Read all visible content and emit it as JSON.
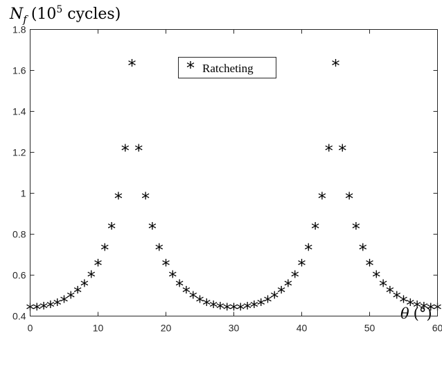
{
  "chart_data": {
    "type": "scatter",
    "title": "",
    "ylabel": {
      "symbol": "N",
      "subscript": "f",
      "open": "(10",
      "exponent": "5",
      "unit": " cycles)"
    },
    "xlabel": {
      "symbol": "θ",
      "unit": "(°)"
    },
    "xlim": [
      0,
      60
    ],
    "ylim": [
      0.4,
      1.8
    ],
    "x_ticks": [
      0,
      10,
      20,
      30,
      40,
      50,
      60
    ],
    "y_ticks": [
      0.4,
      0.6,
      0.8,
      1.0,
      1.2,
      1.4,
      1.6,
      1.8
    ],
    "x_tick_labels": [
      "0",
      "10",
      "20",
      "30",
      "40",
      "50",
      "60"
    ],
    "y_tick_labels": [
      "0.4",
      "0.6",
      "0.8",
      "1",
      "1.2",
      "1.4",
      "1.6",
      "1.8"
    ],
    "grid": false,
    "legend_position": "top-center",
    "series": [
      {
        "name": "Ratcheting",
        "marker": "*",
        "color": "#000000",
        "x": [
          0,
          1,
          2,
          3,
          4,
          5,
          6,
          7,
          8,
          9,
          10,
          11,
          12,
          13,
          14,
          15,
          16,
          17,
          18,
          19,
          20,
          21,
          22,
          23,
          24,
          25,
          26,
          27,
          28,
          29,
          30,
          31,
          32,
          33,
          34,
          35,
          36,
          37,
          38,
          39,
          40,
          41,
          42,
          43,
          44,
          45,
          46,
          47,
          48,
          49,
          50,
          51,
          52,
          53,
          54,
          55,
          56,
          57,
          58,
          59,
          60
        ],
        "y": [
          0.44,
          0.441,
          0.445,
          0.452,
          0.463,
          0.478,
          0.498,
          0.524,
          0.556,
          0.6,
          0.656,
          0.732,
          0.835,
          0.983,
          1.217,
          1.633,
          1.217,
          0.983,
          0.835,
          0.732,
          0.656,
          0.6,
          0.556,
          0.524,
          0.498,
          0.478,
          0.463,
          0.452,
          0.445,
          0.441,
          0.44,
          0.441,
          0.445,
          0.452,
          0.463,
          0.478,
          0.498,
          0.524,
          0.556,
          0.6,
          0.656,
          0.732,
          0.835,
          0.983,
          1.217,
          1.633,
          1.217,
          0.983,
          0.835,
          0.732,
          0.656,
          0.6,
          0.556,
          0.524,
          0.498,
          0.478,
          0.463,
          0.452,
          0.445,
          0.441,
          0.44
        ]
      }
    ]
  }
}
